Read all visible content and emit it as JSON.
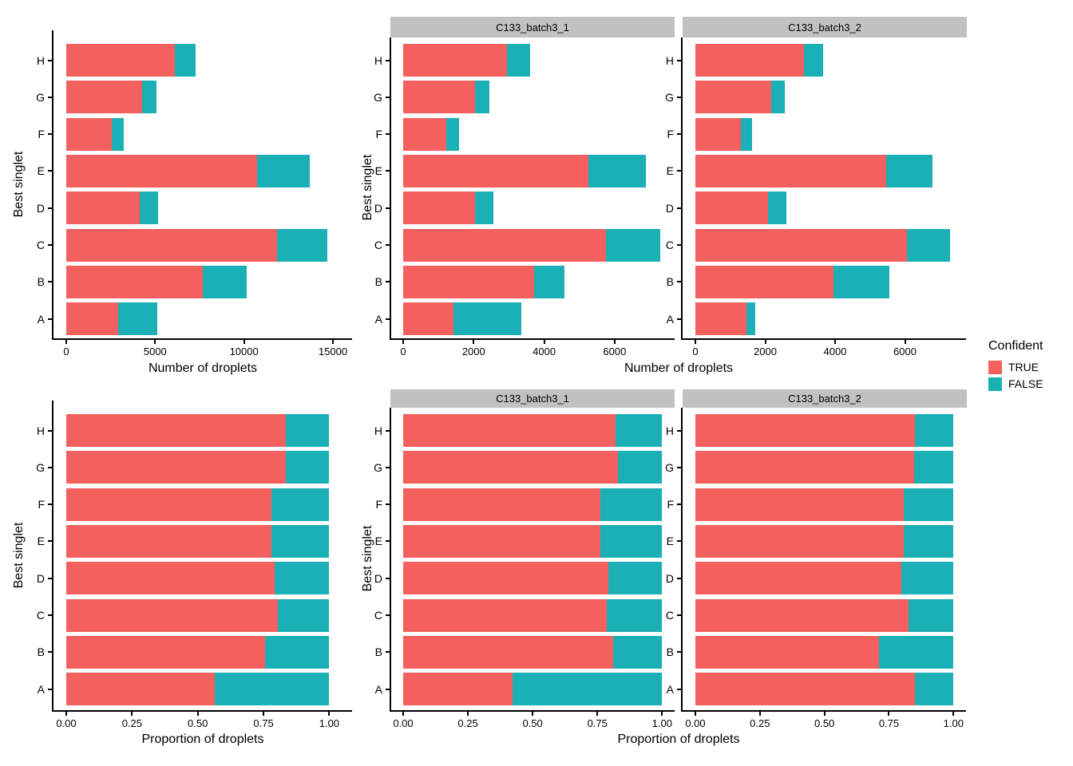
{
  "figure": {
    "facets": [
      "C133_batch3_1",
      "C133_batch3_2"
    ],
    "axes": {
      "y_title": "Best singlet",
      "count_x_title": "Number of droplets",
      "prop_x_title": "Proportion of droplets"
    },
    "legend": {
      "title": "Confident",
      "items": [
        {
          "label": "TRUE",
          "color": "#F4605D"
        },
        {
          "label": "FALSE",
          "color": "#1AB0B6"
        }
      ]
    },
    "colors": {
      "confident_true": "#F4605D",
      "confident_false": "#1AB0B6",
      "strip_bg": "#C1C1C1",
      "axis": "#000000"
    }
  },
  "chart_data": [
    {
      "id": "droplet_counts",
      "type": "bar",
      "orientation": "horizontal",
      "stacked": true,
      "xlabel": "Number of droplets",
      "ylabel": "Best singlet",
      "legend_title": "Confident",
      "legend_entries": [
        "TRUE",
        "FALSE"
      ],
      "categories": [
        "A",
        "B",
        "C",
        "D",
        "E",
        "F",
        "G",
        "H"
      ],
      "category_order_top_to_bottom": [
        "H",
        "G",
        "F",
        "E",
        "D",
        "C",
        "B",
        "A"
      ],
      "panels": [
        {
          "facet": null,
          "x_ticks": [
            0,
            5000,
            10000,
            15000
          ],
          "x_tick_labels": [
            "0",
            "5000",
            "10000",
            "15000"
          ],
          "xmax": 16000,
          "series": [
            {
              "name": "TRUE",
              "values": [
                2900,
                7700,
                11850,
                4120,
                10750,
                2550,
                4250,
                6100
              ]
            },
            {
              "name": "FALSE",
              "values": [
                2200,
                2450,
                2850,
                1060,
                2950,
                700,
                830,
                1180
              ]
            }
          ]
        },
        {
          "facet": "C133_batch3_1",
          "x_ticks": [
            0,
            2000,
            4000,
            6000
          ],
          "x_tick_labels": [
            "0",
            "2000",
            "4000",
            "6000"
          ],
          "xmax": 7700,
          "series": [
            {
              "name": "TRUE",
              "values": [
                1420,
                3720,
                5750,
                2030,
                5250,
                1220,
                2040,
                2950
              ]
            },
            {
              "name": "FALSE",
              "values": [
                1930,
                850,
                1540,
                520,
                1640,
                370,
                400,
                660
              ]
            }
          ]
        },
        {
          "facet": "C133_batch3_2",
          "x_ticks": [
            0,
            2000,
            4000,
            6000
          ],
          "x_tick_labels": [
            "0",
            "2000",
            "4000",
            "6000"
          ],
          "xmax": 7700,
          "series": [
            {
              "name": "TRUE",
              "values": [
                1470,
                3950,
                6050,
                2090,
                5470,
                1300,
                2170,
                3100
              ]
            },
            {
              "name": "FALSE",
              "values": [
                240,
                1600,
                1250,
                505,
                1320,
                320,
                400,
                560
              ]
            }
          ]
        }
      ]
    },
    {
      "id": "droplet_proportions",
      "type": "bar",
      "orientation": "horizontal",
      "stacked": true,
      "xlabel": "Proportion of droplets",
      "ylabel": "Best singlet",
      "legend_title": "Confident",
      "legend_entries": [
        "TRUE",
        "FALSE"
      ],
      "categories": [
        "A",
        "B",
        "C",
        "D",
        "E",
        "F",
        "G",
        "H"
      ],
      "category_order_top_to_bottom": [
        "H",
        "G",
        "F",
        "E",
        "D",
        "C",
        "B",
        "A"
      ],
      "panels": [
        {
          "facet": null,
          "x_ticks": [
            0,
            0.25,
            0.5,
            0.75,
            1
          ],
          "x_tick_labels": [
            "0.00",
            "0.25",
            "0.50",
            "0.75",
            "1.00"
          ],
          "xmax": 1.08,
          "series": [
            {
              "name": "TRUE",
              "values": [
                0.565,
                0.755,
                0.805,
                0.792,
                0.781,
                0.78,
                0.836,
                0.835
              ]
            },
            {
              "name": "FALSE",
              "values": [
                0.435,
                0.245,
                0.195,
                0.208,
                0.219,
                0.22,
                0.164,
                0.165
              ]
            }
          ]
        },
        {
          "facet": "C133_batch3_1",
          "x_ticks": [
            0,
            0.25,
            0.5,
            0.75,
            1
          ],
          "x_tick_labels": [
            "0.00",
            "0.25",
            "0.50",
            "0.75",
            "1.00"
          ],
          "xmax": 1.08,
          "series": [
            {
              "name": "TRUE",
              "values": [
                0.423,
                0.81,
                0.787,
                0.792,
                0.761,
                0.762,
                0.831,
                0.82
              ]
            },
            {
              "name": "FALSE",
              "values": [
                0.577,
                0.19,
                0.213,
                0.208,
                0.239,
                0.238,
                0.169,
                0.18
              ]
            }
          ]
        },
        {
          "facet": "C133_batch3_2",
          "x_ticks": [
            0,
            0.25,
            0.5,
            0.75,
            1
          ],
          "x_tick_labels": [
            "0.00",
            "0.25",
            "0.50",
            "0.75",
            "1.00"
          ],
          "xmax": 1.08,
          "series": [
            {
              "name": "TRUE",
              "values": [
                0.852,
                0.71,
                0.826,
                0.797,
                0.808,
                0.806,
                0.846,
                0.85
              ]
            },
            {
              "name": "FALSE",
              "values": [
                0.148,
                0.29,
                0.174,
                0.203,
                0.192,
                0.194,
                0.154,
                0.15
              ]
            }
          ]
        }
      ]
    }
  ]
}
